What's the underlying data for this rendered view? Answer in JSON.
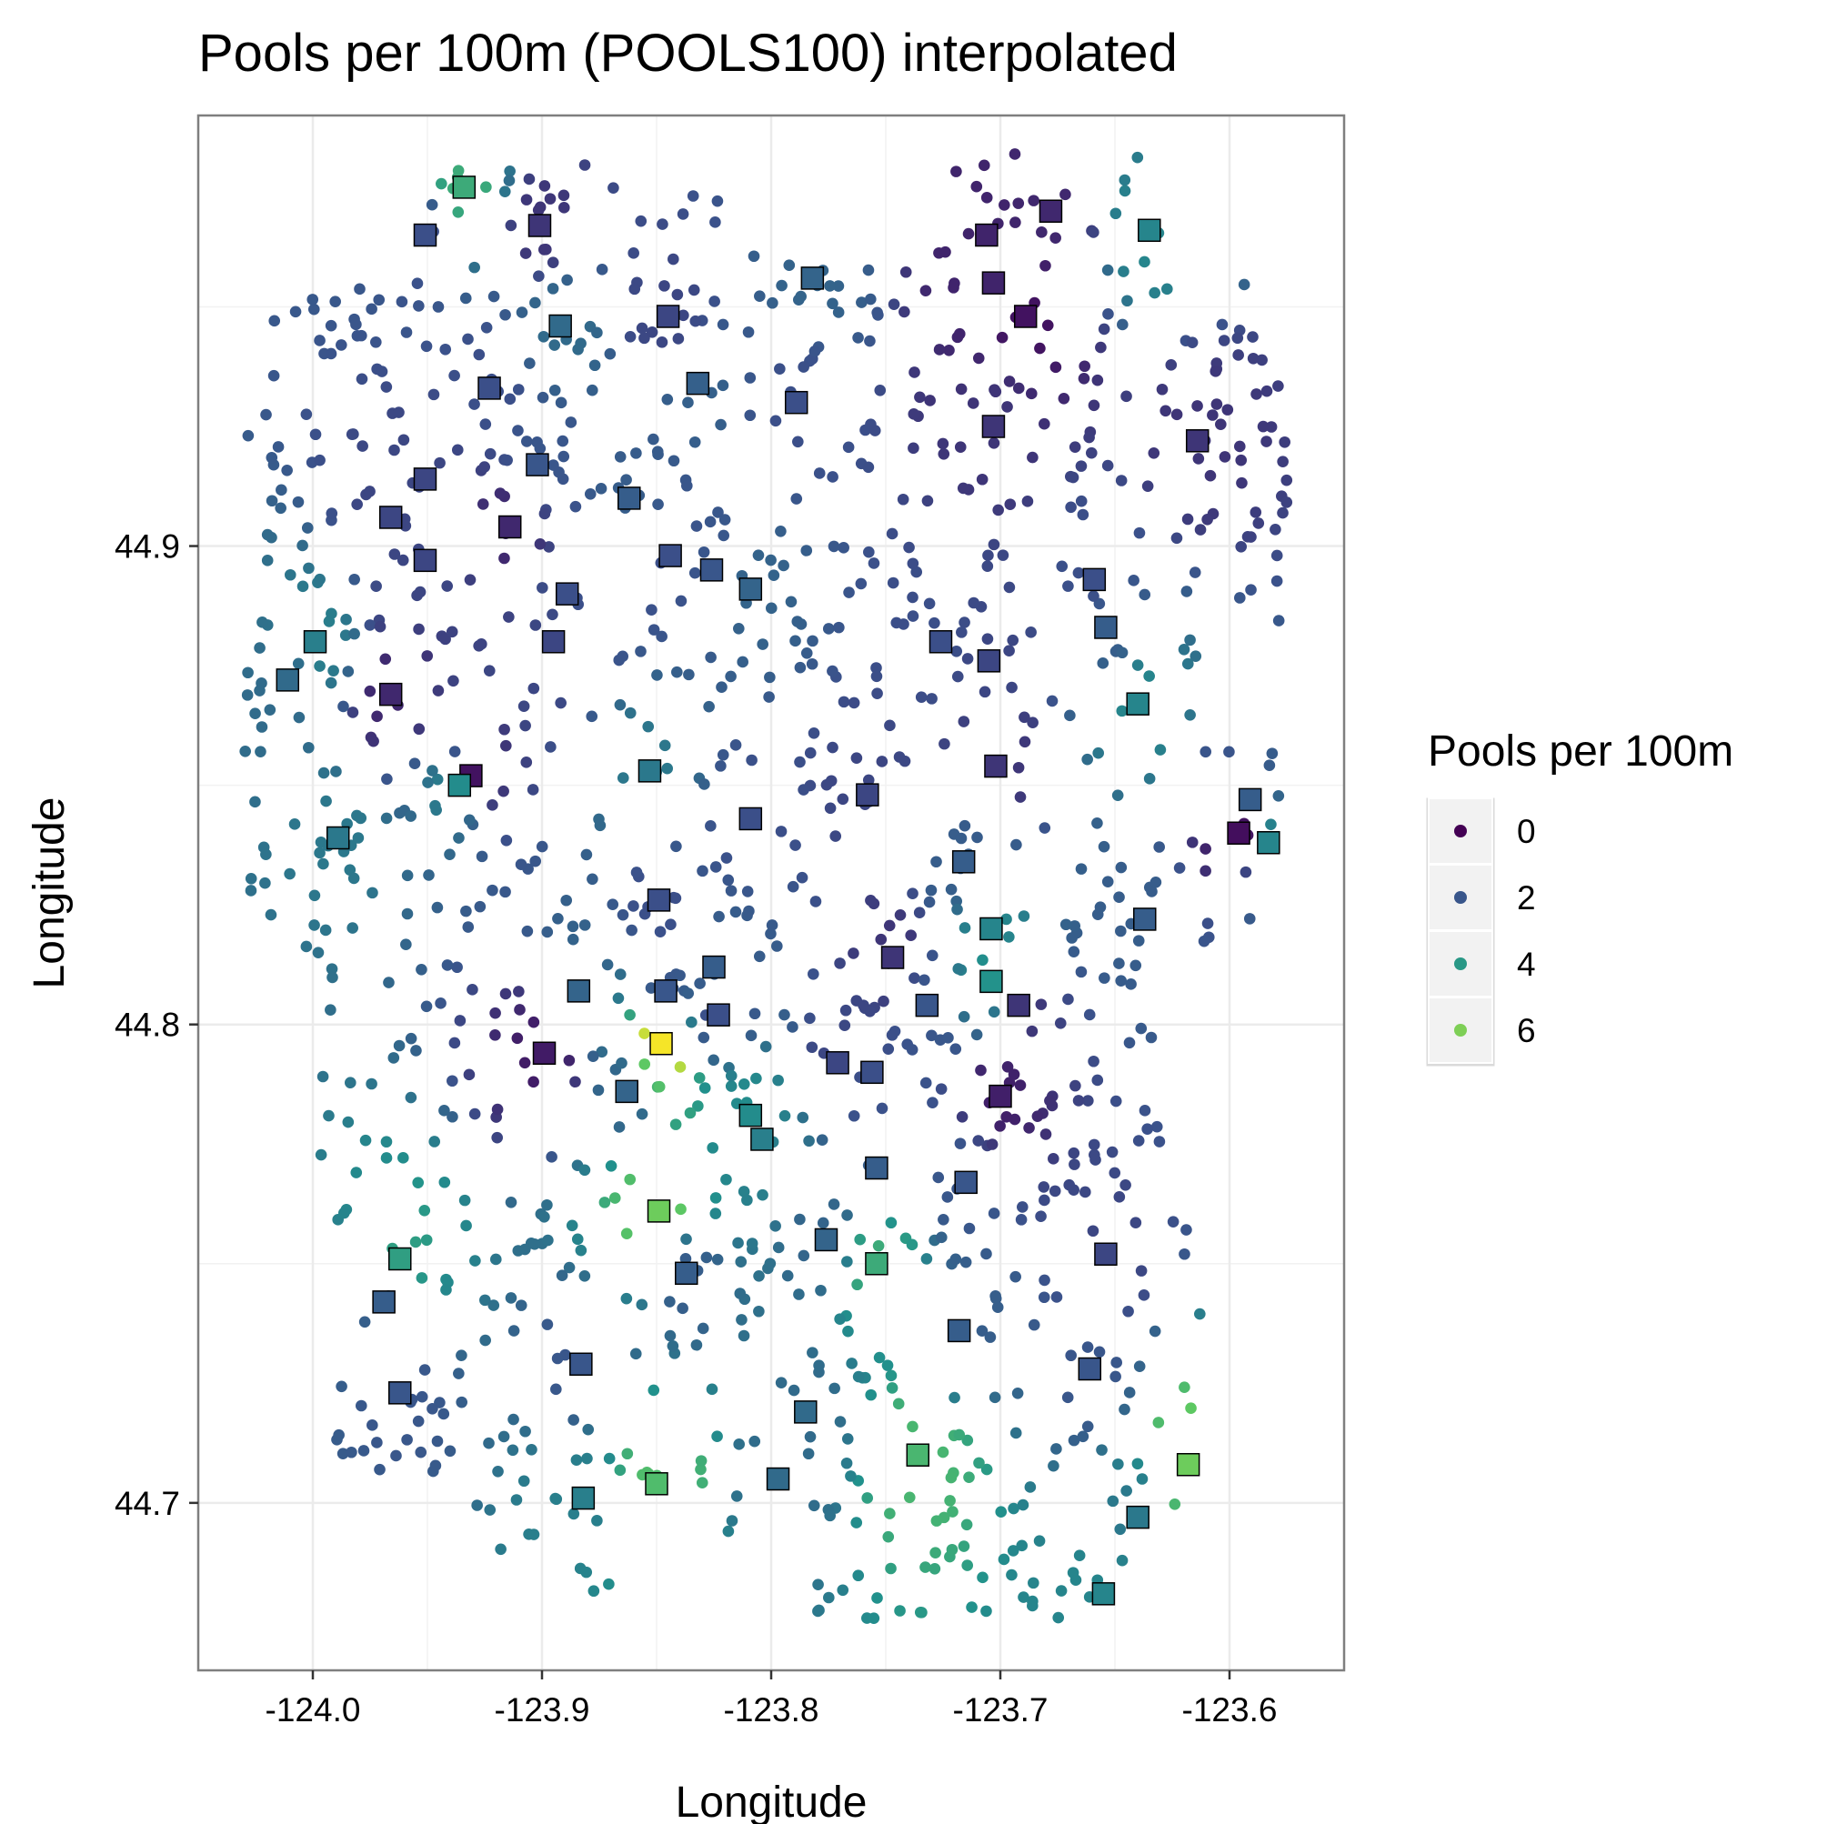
{
  "chart_data": {
    "type": "scatter",
    "title": "Pools per 100m (POOLS100) interpolated",
    "xlabel": "Longitude",
    "ylabel": "Longitude",
    "xlim": [
      -124.05,
      -123.55
    ],
    "ylim": [
      44.665,
      44.99
    ],
    "x_ticks": [
      -124.0,
      -123.9,
      -123.8,
      -123.7,
      -123.6
    ],
    "x_tick_labels": [
      "-124.0",
      "-123.9",
      "-123.8",
      "-123.7",
      "-123.6"
    ],
    "y_ticks": [
      44.7,
      44.8,
      44.9
    ],
    "y_tick_labels": [
      "44.7",
      "44.8",
      "44.9"
    ],
    "grid": true,
    "legend": {
      "title": "Pools per 100m",
      "placement": "right",
      "entries": [
        "0",
        "2",
        "4",
        "6"
      ]
    },
    "color_scale": {
      "name": "viridis",
      "domain": [
        0,
        7.5
      ],
      "stops": [
        "#440154",
        "#3b528b",
        "#21918c",
        "#5ec962",
        "#fde725"
      ]
    },
    "observed_sites": [
      [
        -123.934,
        44.975,
        4.6
      ],
      [
        -123.951,
        44.965,
        1.8
      ],
      [
        -123.901,
        44.967,
        1.2
      ],
      [
        -123.678,
        44.97,
        0.9
      ],
      [
        -123.635,
        44.966,
        3.4
      ],
      [
        -123.706,
        44.965,
        0.8
      ],
      [
        -123.703,
        44.955,
        0.8
      ],
      [
        -123.782,
        44.956,
        2.4
      ],
      [
        -123.892,
        44.946,
        2.6
      ],
      [
        -123.845,
        44.948,
        1.6
      ],
      [
        -123.689,
        44.948,
        0.4
      ],
      [
        -123.923,
        44.933,
        1.8
      ],
      [
        -123.832,
        44.934,
        2.3
      ],
      [
        -123.789,
        44.93,
        1.8
      ],
      [
        -123.703,
        44.925,
        1.2
      ],
      [
        -123.614,
        44.922,
        1.2
      ],
      [
        -123.951,
        44.914,
        1.6
      ],
      [
        -123.902,
        44.917,
        2.0
      ],
      [
        -123.862,
        44.91,
        2.2
      ],
      [
        -123.966,
        44.906,
        1.6
      ],
      [
        -123.914,
        44.904,
        0.9
      ],
      [
        -123.844,
        44.898,
        1.8
      ],
      [
        -123.951,
        44.897,
        1.6
      ],
      [
        -123.826,
        44.895,
        2.0
      ],
      [
        -123.809,
        44.891,
        2.4
      ],
      [
        -123.659,
        44.893,
        1.8
      ],
      [
        -123.889,
        44.89,
        1.8
      ],
      [
        -123.654,
        44.883,
        2.2
      ],
      [
        -123.999,
        44.88,
        3.2
      ],
      [
        -123.895,
        44.88,
        1.6
      ],
      [
        -123.726,
        44.88,
        1.8
      ],
      [
        -123.705,
        44.876,
        1.6
      ],
      [
        -124.011,
        44.872,
        2.6
      ],
      [
        -123.966,
        44.869,
        0.9
      ],
      [
        -123.64,
        44.867,
        3.4
      ],
      [
        -123.931,
        44.852,
        0.4
      ],
      [
        -123.936,
        44.85,
        3.6
      ],
      [
        -123.853,
        44.853,
        3.0
      ],
      [
        -123.702,
        44.854,
        1.2
      ],
      [
        -123.758,
        44.848,
        1.6
      ],
      [
        -123.591,
        44.847,
        2.2
      ],
      [
        -123.596,
        44.84,
        0.3
      ],
      [
        -123.583,
        44.838,
        3.4
      ],
      [
        -123.809,
        44.843,
        1.8
      ],
      [
        -123.989,
        44.839,
        3.0
      ],
      [
        -123.716,
        44.834,
        2.2
      ],
      [
        -123.849,
        44.826,
        1.8
      ],
      [
        -123.637,
        44.822,
        2.2
      ],
      [
        -123.704,
        44.82,
        3.4
      ],
      [
        -123.747,
        44.814,
        1.2
      ],
      [
        -123.825,
        44.812,
        2.2
      ],
      [
        -123.704,
        44.809,
        3.8
      ],
      [
        -123.884,
        44.807,
        2.4
      ],
      [
        -123.846,
        44.807,
        2.0
      ],
      [
        -123.732,
        44.804,
        2.0
      ],
      [
        -123.692,
        44.804,
        1.2
      ],
      [
        -123.823,
        44.802,
        1.8
      ],
      [
        -123.848,
        44.796,
        7.4
      ],
      [
        -123.899,
        44.794,
        0.6
      ],
      [
        -123.771,
        44.792,
        1.6
      ],
      [
        -123.756,
        44.79,
        1.8
      ],
      [
        -123.863,
        44.786,
        2.4
      ],
      [
        -123.7,
        44.785,
        0.7
      ],
      [
        -123.809,
        44.781,
        3.6
      ],
      [
        -123.804,
        44.776,
        3.2
      ],
      [
        -123.754,
        44.77,
        2.2
      ],
      [
        -123.715,
        44.767,
        2.0
      ],
      [
        -123.849,
        44.761,
        5.8
      ],
      [
        -123.962,
        44.751,
        4.2
      ],
      [
        -123.776,
        44.755,
        2.4
      ],
      [
        -123.654,
        44.752,
        1.6
      ],
      [
        -123.754,
        44.75,
        4.6
      ],
      [
        -123.837,
        44.748,
        2.2
      ],
      [
        -123.969,
        44.742,
        2.2
      ],
      [
        -123.718,
        44.736,
        2.2
      ],
      [
        -123.883,
        44.729,
        2.0
      ],
      [
        -123.661,
        44.728,
        2.0
      ],
      [
        -123.962,
        44.723,
        2.0
      ],
      [
        -123.785,
        44.719,
        2.6
      ],
      [
        -123.736,
        44.71,
        5.0
      ],
      [
        -123.618,
        44.708,
        5.8
      ],
      [
        -123.85,
        44.704,
        5.2
      ],
      [
        -123.797,
        44.705,
        2.6
      ],
      [
        -123.882,
        44.701,
        3.2
      ],
      [
        -123.64,
        44.697,
        3.0
      ],
      [
        -123.655,
        44.681,
        3.4
      ]
    ]
  }
}
